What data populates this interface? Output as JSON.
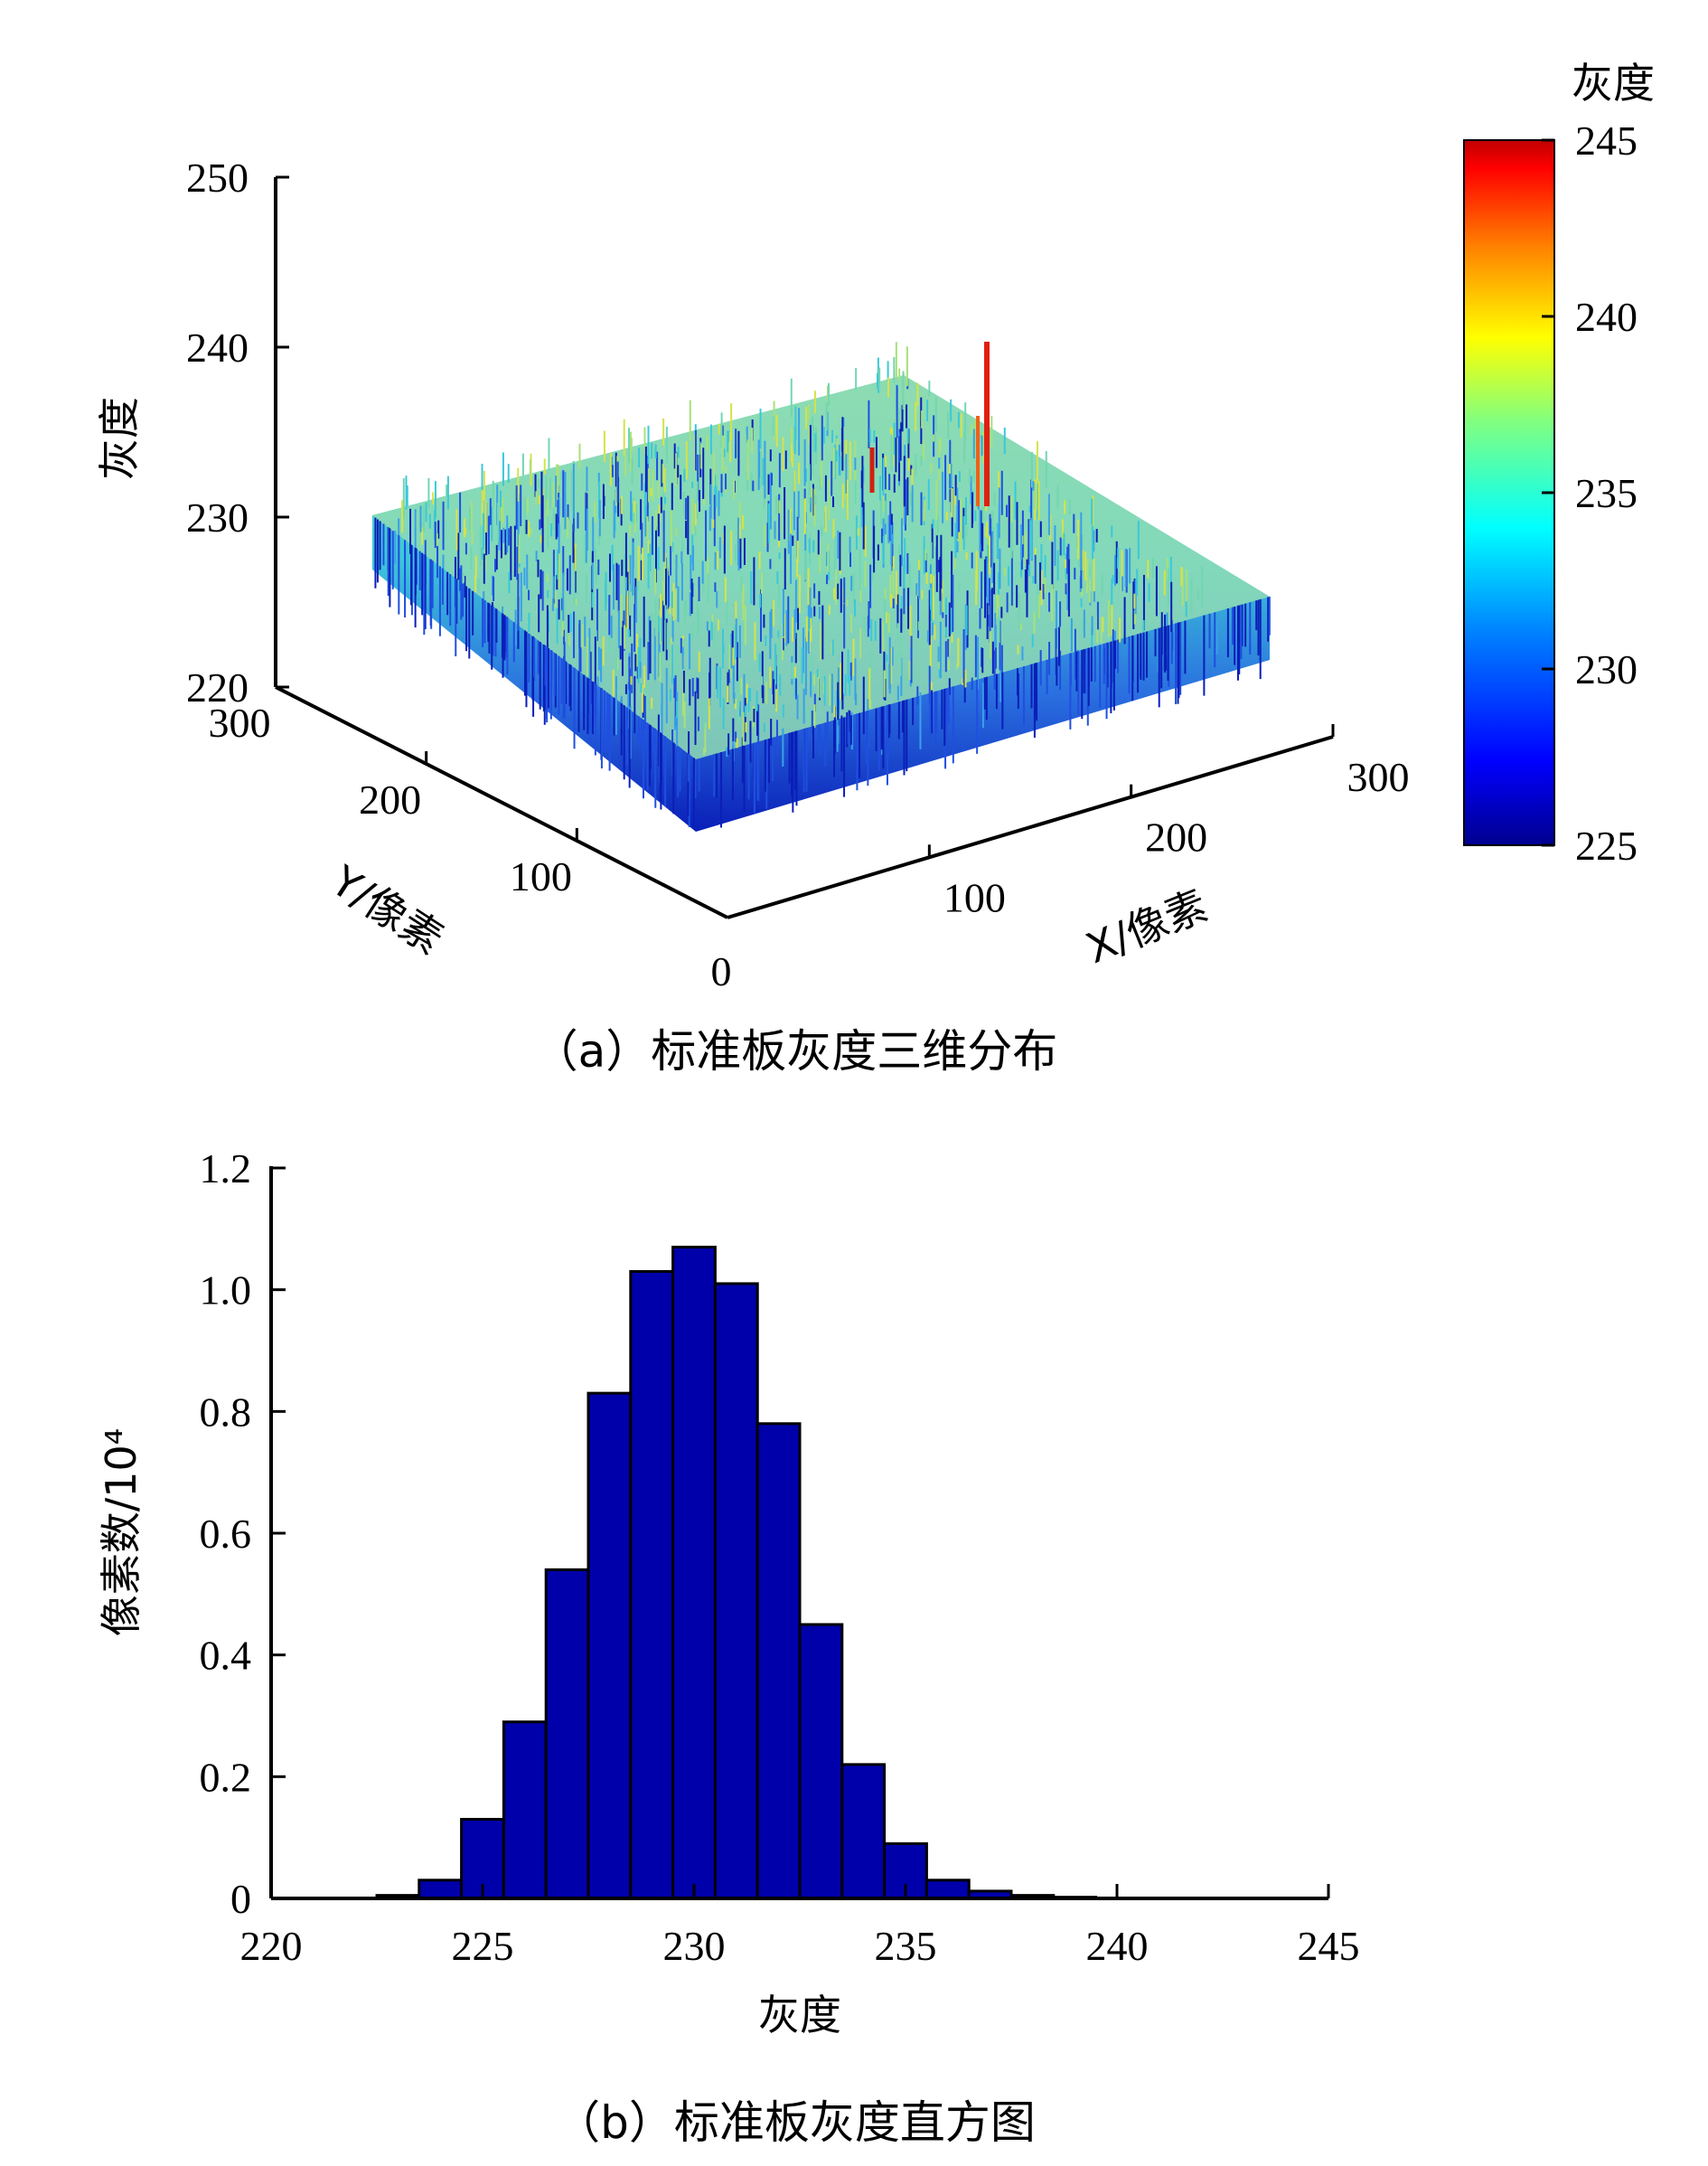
{
  "chart_data": [
    {
      "type": "surface3d",
      "caption": "（a）标准板灰度三维分布",
      "zlabel": "灰度",
      "xlabel": "X/像素",
      "ylabel": "Y/像素",
      "zlim": [
        220,
        250
      ],
      "z_ticks": [
        "250",
        "240",
        "230",
        "220"
      ],
      "x_ticks": [
        "100",
        "200",
        "300"
      ],
      "y_ticks": [
        "300",
        "200",
        "100"
      ],
      "origin_tick": "0",
      "xlim": [
        0,
        300
      ],
      "ylim": [
        0,
        300
      ],
      "colorbar": {
        "title": "灰度",
        "range": [
          225,
          245
        ],
        "ticks": [
          "245",
          "240",
          "235",
          "230",
          "225"
        ],
        "colormap": [
          "#00008f",
          "#0000ff",
          "#0080ff",
          "#00ffff",
          "#80ff80",
          "#ffff00",
          "#ff8000",
          "#ff0000",
          "#800000"
        ]
      },
      "surface": {
        "mean_gray": 231,
        "min_gray": 225,
        "max_gray": 245
      }
    },
    {
      "type": "bar",
      "caption": "（b）标准板灰度直方图",
      "xlabel": "灰度",
      "ylabel": "像素数/10⁴",
      "xlim": [
        220,
        245
      ],
      "ylim": [
        0,
        1.2
      ],
      "x_ticks": [
        "220",
        "225",
        "230",
        "235",
        "240",
        "245"
      ],
      "y_ticks": [
        "0",
        "0.2",
        "0.4",
        "0.6",
        "0.8",
        "1.0",
        "1.2"
      ],
      "bar_color": "#0000aa",
      "categories": [
        223,
        224,
        225,
        226,
        227,
        228,
        229,
        230,
        231,
        232,
        233,
        234,
        235,
        236,
        237,
        238,
        239
      ],
      "values": [
        0.005,
        0.03,
        0.13,
        0.29,
        0.54,
        0.83,
        1.03,
        1.07,
        1.01,
        0.78,
        0.45,
        0.22,
        0.09,
        0.03,
        0.012,
        0.005,
        0.002
      ]
    }
  ]
}
